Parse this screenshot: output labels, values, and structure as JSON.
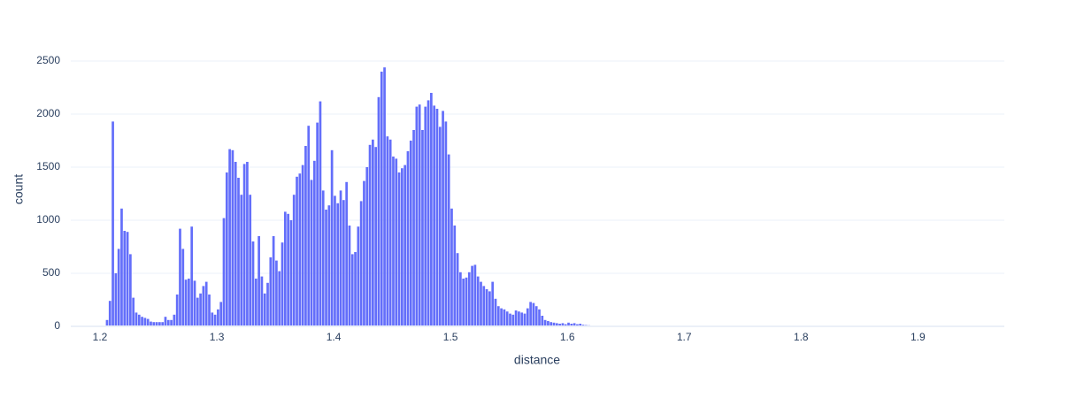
{
  "chart_data": {
    "type": "histogram",
    "x_label": "distance",
    "y_label": "count",
    "color": "#636efa",
    "grid": true,
    "xlim": [
      1.175,
      1.974
    ],
    "ylim": [
      0,
      2575
    ],
    "xticks": [
      1.2,
      1.3,
      1.4,
      1.5,
      1.6,
      1.7,
      1.8,
      1.9
    ],
    "yticks": [
      0,
      500,
      1000,
      1500,
      2000,
      2500
    ],
    "bins": [
      1.205,
      1.2075,
      1.21,
      1.2125,
      1.215,
      1.2175,
      1.22,
      1.2225,
      1.225,
      1.2275,
      1.23,
      1.2325,
      1.235,
      1.2375,
      1.24,
      1.2425,
      1.245,
      1.2475,
      1.25,
      1.2525,
      1.255,
      1.2575,
      1.26,
      1.2625,
      1.265,
      1.2675,
      1.27,
      1.2725,
      1.275,
      1.2775,
      1.28,
      1.2825,
      1.285,
      1.2875,
      1.29,
      1.2925,
      1.295,
      1.2975,
      1.3,
      1.3025,
      1.305,
      1.3075,
      1.31,
      1.3125,
      1.315,
      1.3175,
      1.32,
      1.3225,
      1.325,
      1.3275,
      1.33,
      1.3325,
      1.335,
      1.3375,
      1.34,
      1.3425,
      1.345,
      1.3475,
      1.35,
      1.3525,
      1.355,
      1.3575,
      1.36,
      1.3625,
      1.365,
      1.3675,
      1.37,
      1.3725,
      1.375,
      1.3775,
      1.38,
      1.3825,
      1.385,
      1.3875,
      1.39,
      1.3925,
      1.395,
      1.3975,
      1.4,
      1.4025,
      1.405,
      1.4075,
      1.41,
      1.4125,
      1.415,
      1.4175,
      1.42,
      1.4225,
      1.425,
      1.4275,
      1.43,
      1.4325,
      1.435,
      1.4375,
      1.44,
      1.4425,
      1.445,
      1.4475,
      1.45,
      1.4525,
      1.455,
      1.4575,
      1.46,
      1.4625,
      1.465,
      1.4675,
      1.47,
      1.4725,
      1.475,
      1.4775,
      1.48,
      1.4825,
      1.485,
      1.4875,
      1.49,
      1.4925,
      1.495,
      1.4975,
      1.5,
      1.5025,
      1.505,
      1.5075,
      1.51,
      1.5125,
      1.515,
      1.5175,
      1.52,
      1.5225,
      1.525,
      1.5275,
      1.53,
      1.5325,
      1.535,
      1.5375,
      1.54,
      1.5425,
      1.545,
      1.5475,
      1.55,
      1.5525,
      1.555,
      1.5575,
      1.56,
      1.5625,
      1.565,
      1.5675,
      1.57,
      1.5725,
      1.575,
      1.5775,
      1.58,
      1.5825,
      1.585,
      1.5875,
      1.59,
      1.5925,
      1.595,
      1.5975,
      1.6,
      1.6025,
      1.605,
      1.6075,
      1.61,
      1.6125,
      1.615,
      1.6175,
      1.62,
      1.6225,
      1.625,
      1.6275,
      1.63,
      1.6325,
      1.635,
      1.6375,
      1.64,
      1.6425,
      1.645,
      1.6475,
      1.65,
      1.6525,
      1.655,
      1.6575,
      1.66,
      1.6625,
      1.665,
      1.6675,
      1.67,
      1.6725,
      1.675,
      1.6775,
      1.68
    ],
    "values": [
      60,
      240,
      1930,
      500,
      730,
      1110,
      900,
      890,
      680,
      270,
      130,
      110,
      90,
      80,
      70,
      45,
      40,
      40,
      40,
      40,
      90,
      60,
      60,
      110,
      300,
      920,
      730,
      440,
      450,
      940,
      430,
      270,
      310,
      380,
      420,
      300,
      130,
      110,
      160,
      230,
      1020,
      1450,
      1670,
      1660,
      1550,
      1400,
      1240,
      1530,
      1550,
      1240,
      800,
      450,
      850,
      470,
      310,
      410,
      650,
      850,
      620,
      520,
      790,
      1080,
      1060,
      1000,
      1240,
      1410,
      1440,
      1520,
      1700,
      1890,
      1380,
      1560,
      1920,
      2120,
      1280,
      1100,
      1140,
      1660,
      1230,
      1160,
      1280,
      1190,
      1360,
      950,
      680,
      700,
      940,
      1180,
      1370,
      1500,
      1710,
      1760,
      1690,
      2160,
      2400,
      2440,
      1790,
      1760,
      1600,
      1580,
      1450,
      1490,
      1520,
      1650,
      1750,
      1850,
      2070,
      2090,
      1850,
      2070,
      2130,
      2200,
      2080,
      2050,
      1880,
      2030,
      1930,
      1620,
      1110,
      950,
      690,
      510,
      450,
      460,
      510,
      570,
      580,
      470,
      420,
      380,
      350,
      330,
      420,
      260,
      190,
      170,
      160,
      140,
      120,
      110,
      150,
      140,
      130,
      120,
      170,
      230,
      220,
      190,
      160,
      100,
      60,
      50,
      40,
      35,
      30,
      25,
      30,
      20,
      35,
      25,
      30,
      20,
      25,
      15,
      12,
      10,
      8,
      5,
      5,
      4,
      3,
      3,
      2,
      2,
      2,
      1,
      2,
      1,
      1,
      1,
      2,
      1,
      1,
      0,
      1,
      1,
      0,
      1,
      1,
      1
    ]
  }
}
